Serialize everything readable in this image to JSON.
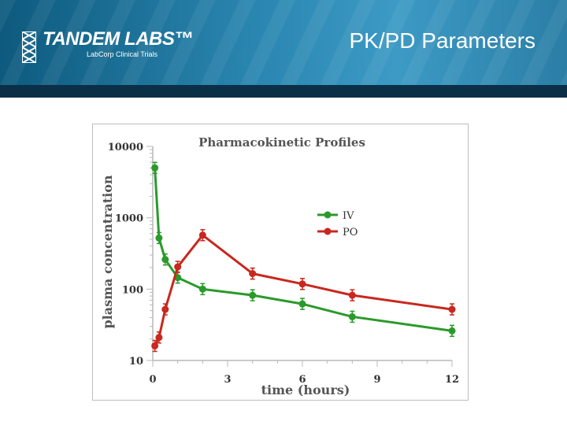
{
  "header": {
    "logo_name": "TANDEM LABS™",
    "logo_subtitle": "LabCorp Clinical Trials",
    "slide_title": "PK/PD Parameters"
  },
  "colors": {
    "iv": "#2a9a2a",
    "po": "#c8281e",
    "header": "#1f6f98",
    "header_bar": "#0b2f46"
  },
  "chart_data": {
    "type": "line",
    "title": "Pharmacokinetic Profiles",
    "xlabel": "time (hours)",
    "ylabel": "plasma concentration",
    "xlim": [
      0,
      12
    ],
    "ylim": [
      10,
      10000
    ],
    "y_scale": "log",
    "x_ticks": [
      "0",
      "3",
      "6",
      "9",
      "12"
    ],
    "x_tick_values": [
      0,
      3,
      6,
      9,
      12
    ],
    "y_ticks": [
      "10",
      "100",
      "1000",
      "10000"
    ],
    "y_tick_values": [
      10,
      100,
      1000,
      10000
    ],
    "grid": false,
    "legend_position": "top-right",
    "series": [
      {
        "name": "IV",
        "color": "#2a9a2a",
        "x": [
          0.083,
          0.25,
          0.5,
          1,
          2,
          4,
          6,
          8,
          12
        ],
        "y": [
          5000,
          520,
          260,
          145,
          100,
          82,
          62,
          41,
          26
        ]
      },
      {
        "name": "PO",
        "color": "#c8281e",
        "x": [
          0.083,
          0.25,
          0.5,
          1,
          2,
          4,
          6,
          8,
          12
        ],
        "y": [
          16,
          21,
          52,
          205,
          570,
          165,
          118,
          82,
          52
        ]
      }
    ]
  }
}
